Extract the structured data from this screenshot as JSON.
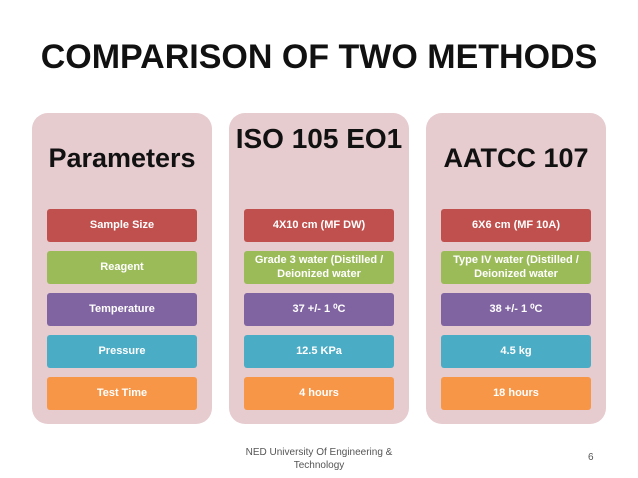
{
  "slide": {
    "title": "COMPARISON OF TWO METHODS",
    "footer": "NED University Of Engineering & Technology",
    "page_number": "6"
  },
  "columns": [
    {
      "header": "Parameters",
      "items": [
        "Sample Size",
        "Reagent",
        "Temperature",
        "Pressure",
        "Test Time"
      ]
    },
    {
      "header": "ISO 105 EO1",
      "items": [
        "4X10 cm (MF DW)",
        "Grade 3 water (Distilled / Deionized water",
        "37 +/- 1 ⁰C",
        "12.5 KPa",
        "4 hours"
      ]
    },
    {
      "header": "AATCC 107",
      "items": [
        "6X6 cm (MF 10A)",
        "Type IV water  (Distilled / Deionized water",
        "38 +/- 1 ⁰C",
        "4.5 kg",
        "18 hours"
      ]
    }
  ],
  "colors": {
    "panel_bg": "#e6cbcf",
    "row_1": "#c0504d",
    "row_2": "#9bbb59",
    "row_3": "#8064a2",
    "row_4": "#4bacc6",
    "row_5": "#f79646"
  }
}
